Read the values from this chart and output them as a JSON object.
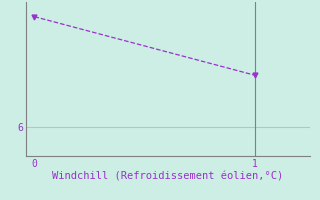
{
  "x_data": [
    0,
    1
  ],
  "y_data": [
    9.0,
    7.4
  ],
  "line_color": "#9932CC",
  "marker_color": "#9932CC",
  "bg_color": "#cceee4",
  "axis_color": "#808080",
  "grid_color": "#a8ccc0",
  "xlabel": "Windchill (Refroidissement éolien,°C)",
  "xlabel_color": "#9932CC",
  "xlabel_fontsize": 7.5,
  "tick_color": "#9932CC",
  "tick_fontsize": 7,
  "ytick_values": [
    6
  ],
  "xtick_values": [
    0,
    1
  ],
  "xlim": [
    -0.04,
    1.25
  ],
  "ylim": [
    5.2,
    9.4
  ],
  "vline_x": 1,
  "hline_y": 6
}
